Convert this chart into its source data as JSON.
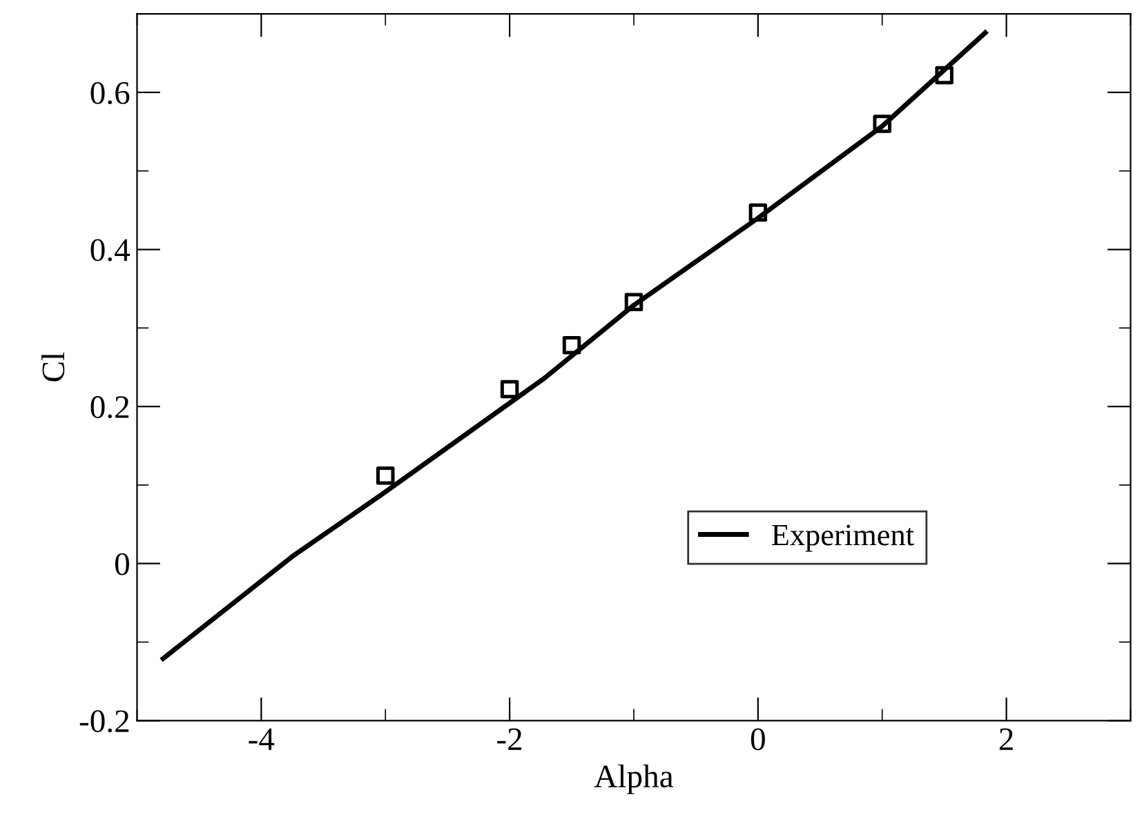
{
  "chart_data": {
    "type": "line",
    "xlabel": "Alpha",
    "ylabel": "Cl",
    "xlim": [
      -5,
      3
    ],
    "ylim": [
      -0.2,
      0.7
    ],
    "xticks": [
      -4,
      -2,
      0,
      2
    ],
    "yticks": [
      -0.2,
      0,
      0.2,
      0.4,
      0.6
    ],
    "series": [
      {
        "name": "Experiment",
        "color": "#000000",
        "marker": "none",
        "line_style": "solid",
        "x": [
          -4.79,
          -3.75,
          -3.02,
          -1.72,
          -1.0,
          0.0,
          1.0,
          1.83
        ],
        "values": [
          -0.121,
          0.009,
          0.089,
          0.236,
          0.329,
          0.44,
          0.557,
          0.676
        ]
      },
      {
        "type": "scatter",
        "color": "#000000",
        "marker": "square",
        "x": [
          -3,
          -2,
          -1.5,
          -1,
          0,
          1,
          1.5
        ],
        "values": [
          0.112,
          0.222,
          0.278,
          0.333,
          0.447,
          0.56,
          0.622
        ]
      }
    ],
    "legend": "bottom right",
    "grid": false
  }
}
